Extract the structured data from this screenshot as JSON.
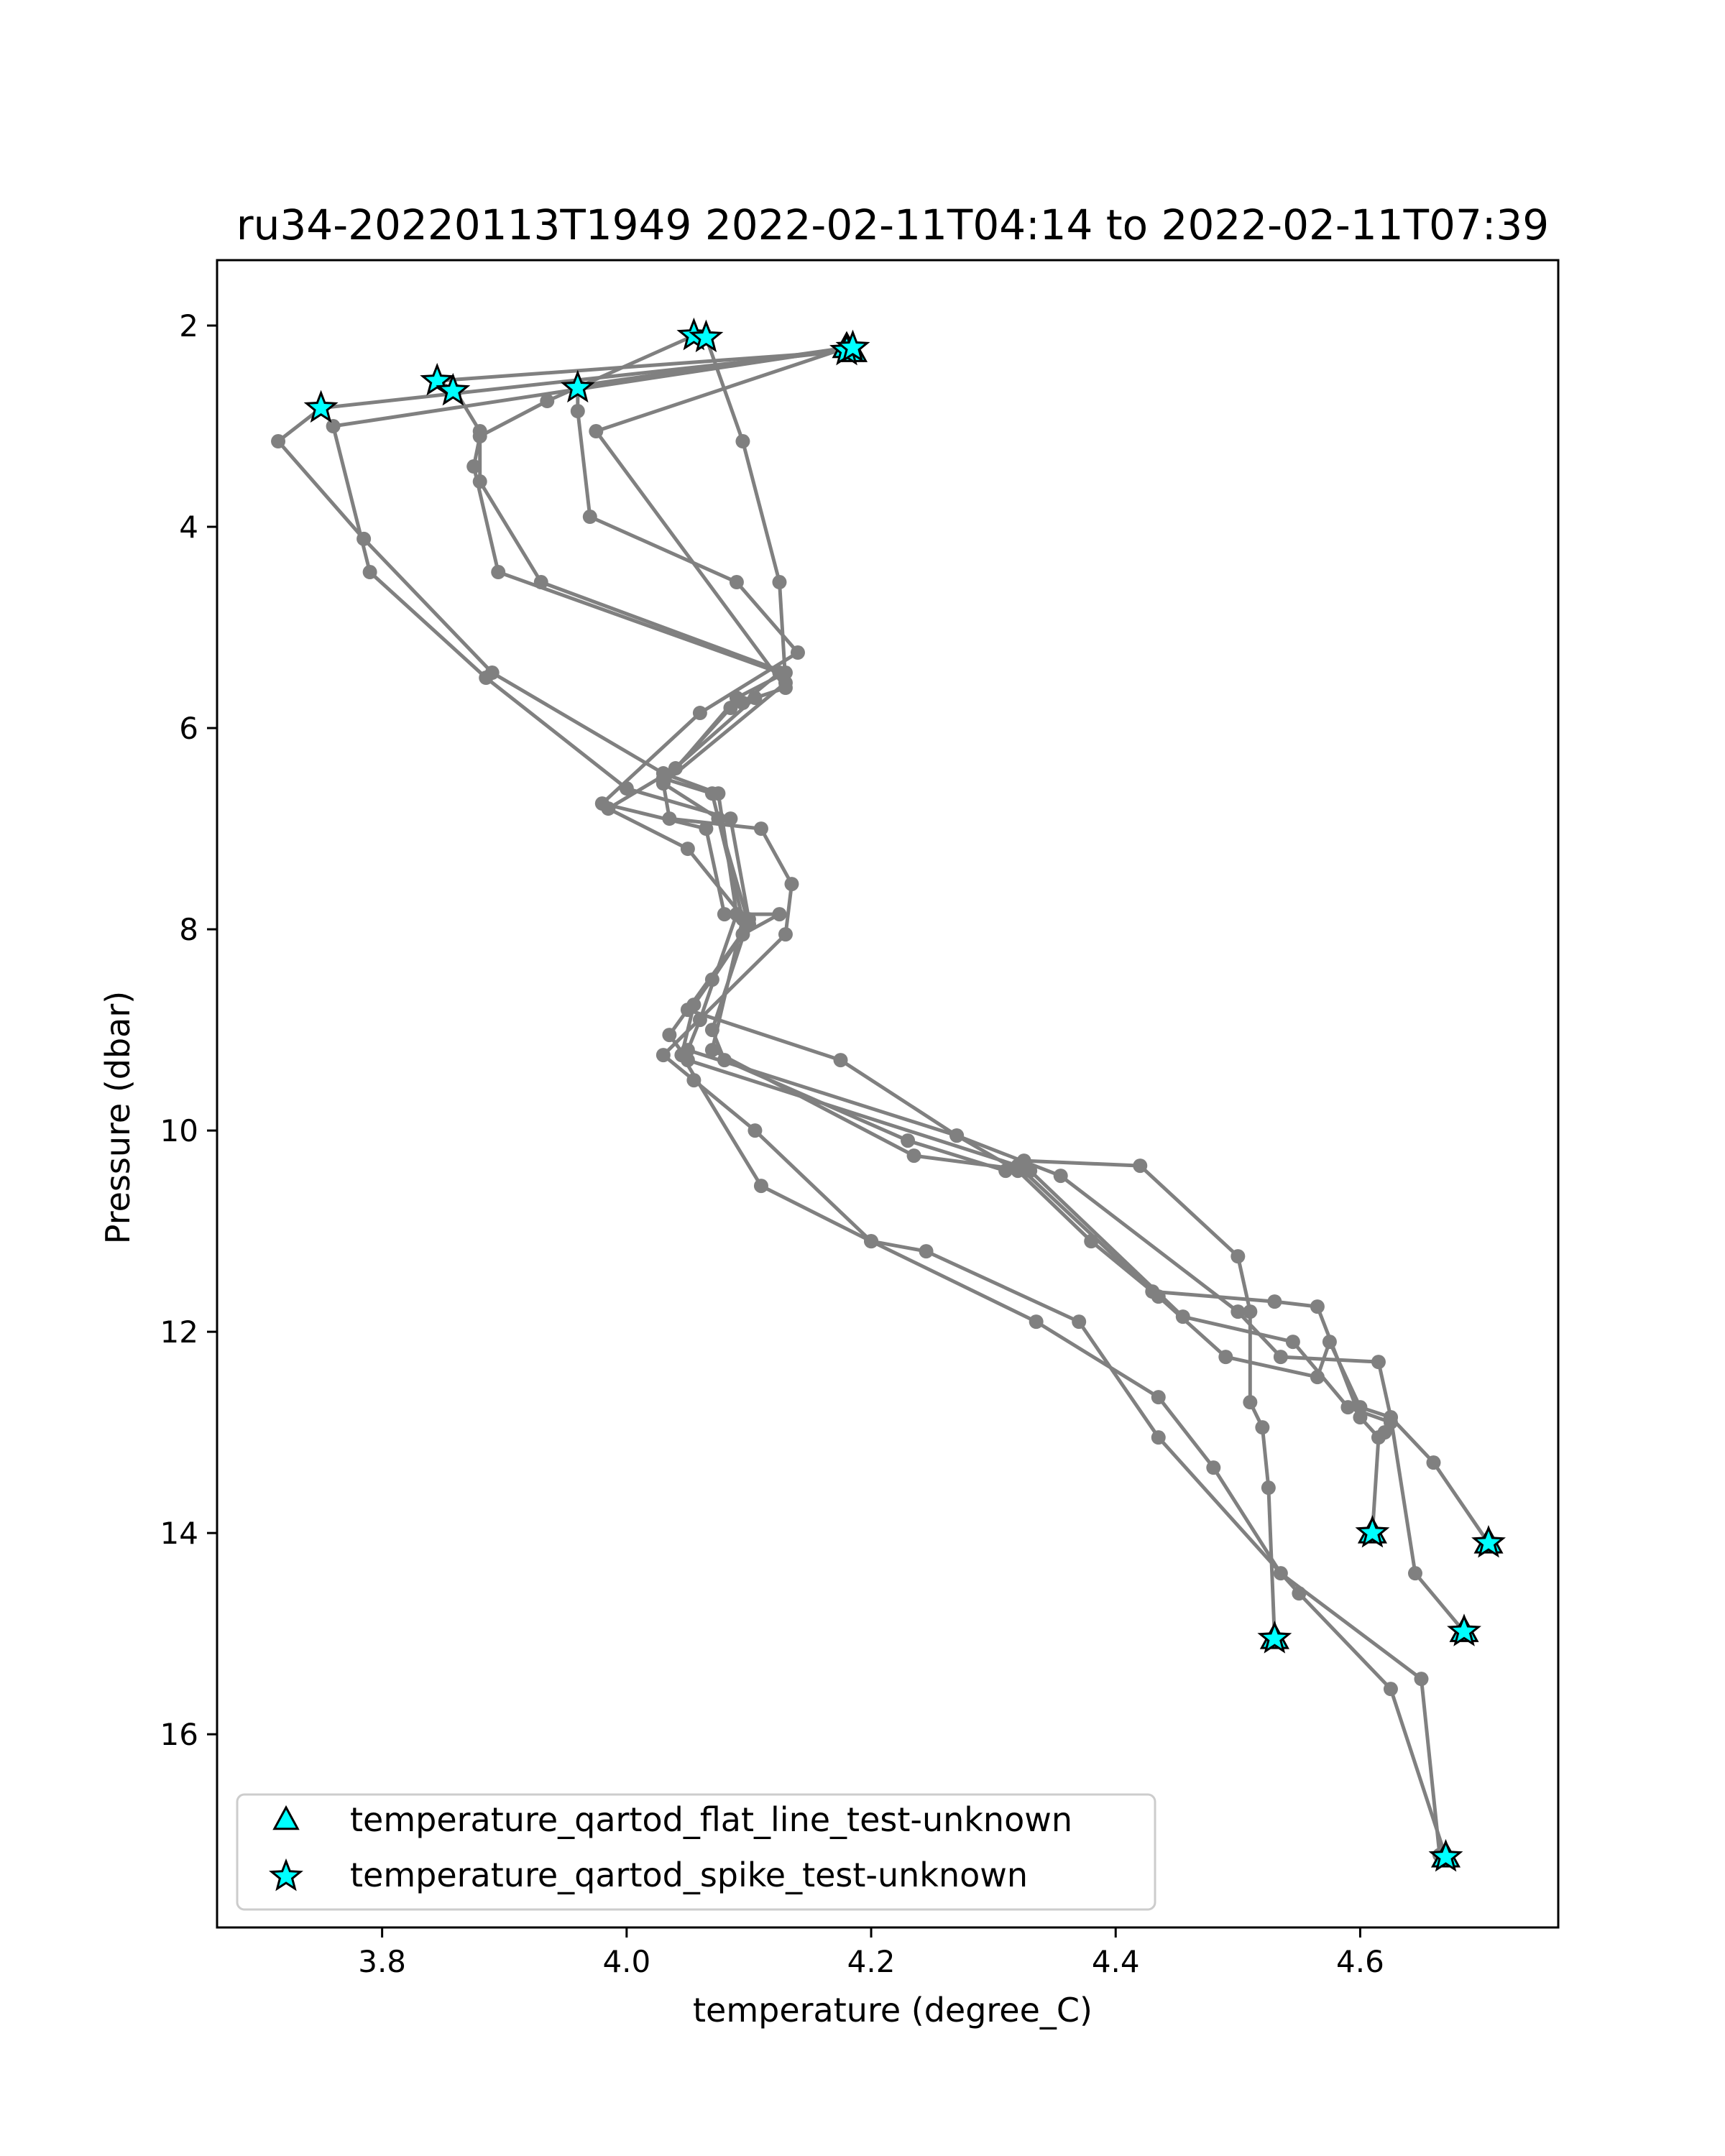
{
  "chart_data": {
    "type": "scatter",
    "title": "ru34-20220113T1949 2022-02-11T04:14 to 2022-02-11T07:39",
    "xlabel": "temperature (degree_C)",
    "ylabel": "Pressure (dbar)",
    "xlim": [
      3.665,
      4.762
    ],
    "ylim": [
      17.92,
      1.35
    ],
    "y_inverted": true,
    "xticks": [
      "3.8",
      "4.0",
      "4.2",
      "4.4",
      "4.6"
    ],
    "xtick_values": [
      3.8,
      4.0,
      4.2,
      4.4,
      4.6
    ],
    "yticks": [
      "2",
      "4",
      "6",
      "8",
      "10",
      "12",
      "14",
      "16"
    ],
    "ytick_values": [
      2,
      4,
      6,
      8,
      10,
      12,
      14,
      16
    ],
    "grid": false,
    "legend_position": "lower-left",
    "colors": {
      "profile_line": "#808080",
      "flag_marker": "#00ffff",
      "marker_edge": "#000000"
    },
    "profiles": [
      {
        "points": [
          [
            4.18,
            2.25
          ],
          [
            3.75,
            2.82
          ],
          [
            3.715,
            3.15
          ],
          [
            3.785,
            4.12
          ],
          [
            3.89,
            5.45
          ],
          [
            4.03,
            6.45
          ],
          [
            4.075,
            6.65
          ],
          [
            4.09,
            7.85
          ],
          [
            4.06,
            8.9
          ],
          [
            4.05,
            9.2
          ],
          [
            4.27,
            10.05
          ],
          [
            4.32,
            10.4
          ],
          [
            4.38,
            11.1
          ],
          [
            4.435,
            11.65
          ],
          [
            4.49,
            12.25
          ],
          [
            4.565,
            12.45
          ],
          [
            4.575,
            12.1
          ],
          [
            4.6,
            12.75
          ],
          [
            4.625,
            12.85
          ],
          [
            4.645,
            14.4
          ],
          [
            4.685,
            14.98
          ]
        ]
      },
      {
        "points": [
          [
            4.185,
            2.22
          ],
          [
            3.76,
            3.0
          ],
          [
            3.79,
            4.45
          ],
          [
            3.885,
            5.5
          ],
          [
            4.0,
            6.6
          ],
          [
            4.085,
            6.9
          ],
          [
            4.1,
            7.9
          ],
          [
            4.07,
            9.0
          ],
          [
            4.08,
            9.3
          ],
          [
            4.23,
            10.1
          ],
          [
            4.31,
            10.4
          ],
          [
            4.325,
            10.3
          ],
          [
            4.42,
            10.35
          ],
          [
            4.5,
            11.25
          ],
          [
            4.51,
            11.8
          ],
          [
            4.51,
            12.7
          ],
          [
            4.52,
            12.95
          ],
          [
            4.525,
            13.55
          ],
          [
            4.53,
            15.05
          ]
        ]
      },
      {
        "points": [
          [
            4.055,
            2.1
          ],
          [
            3.935,
            2.75
          ],
          [
            3.88,
            3.1
          ],
          [
            3.875,
            3.4
          ],
          [
            3.895,
            4.45
          ],
          [
            4.125,
            5.45
          ],
          [
            4.095,
            5.75
          ],
          [
            4.085,
            5.8
          ],
          [
            4.04,
            6.4
          ],
          [
            3.985,
            6.8
          ],
          [
            4.05,
            7.2
          ],
          [
            4.1,
            7.95
          ],
          [
            4.035,
            9.05
          ],
          [
            4.05,
            9.3
          ],
          [
            4.32,
            10.35
          ],
          [
            4.43,
            11.6
          ],
          [
            4.53,
            11.7
          ],
          [
            4.565,
            11.75
          ],
          [
            4.6,
            12.85
          ],
          [
            4.615,
            13.05
          ],
          [
            4.61,
            14.0
          ]
        ]
      },
      {
        "points": [
          [
            4.065,
            2.12
          ],
          [
            4.095,
            3.15
          ],
          [
            4.125,
            4.55
          ],
          [
            4.13,
            5.55
          ],
          [
            4.03,
            6.55
          ],
          [
            4.035,
            6.9
          ],
          [
            4.11,
            7.0
          ],
          [
            4.135,
            7.55
          ],
          [
            4.13,
            8.05
          ],
          [
            4.03,
            9.25
          ],
          [
            4.055,
            9.5
          ],
          [
            4.105,
            10.0
          ],
          [
            4.2,
            11.1
          ],
          [
            4.335,
            11.9
          ],
          [
            4.435,
            12.65
          ],
          [
            4.48,
            13.35
          ],
          [
            4.535,
            14.4
          ],
          [
            4.65,
            15.45
          ],
          [
            4.665,
            17.2
          ]
        ]
      },
      {
        "points": [
          [
            4.18,
            2.22
          ],
          [
            3.96,
            2.6
          ],
          [
            3.96,
            2.85
          ],
          [
            3.97,
            3.9
          ],
          [
            4.09,
            4.55
          ],
          [
            4.14,
            5.25
          ],
          [
            4.06,
            5.85
          ],
          [
            3.98,
            6.75
          ],
          [
            4.065,
            7.0
          ],
          [
            4.08,
            7.85
          ],
          [
            4.125,
            7.85
          ],
          [
            4.095,
            8.05
          ],
          [
            4.055,
            8.75
          ],
          [
            4.045,
            9.25
          ],
          [
            4.11,
            10.55
          ],
          [
            4.2,
            11.1
          ],
          [
            4.245,
            11.2
          ],
          [
            4.37,
            11.9
          ],
          [
            4.435,
            13.05
          ],
          [
            4.55,
            14.6
          ],
          [
            4.625,
            15.55
          ],
          [
            4.67,
            17.22
          ]
        ]
      },
      {
        "points": [
          [
            4.185,
            2.25
          ],
          [
            3.845,
            2.55
          ],
          [
            3.86,
            2.65
          ],
          [
            3.88,
            3.05
          ],
          [
            3.88,
            3.55
          ],
          [
            3.93,
            4.55
          ],
          [
            4.13,
            5.45
          ],
          [
            4.09,
            5.7
          ],
          [
            4.03,
            6.55
          ],
          [
            4.075,
            6.9
          ],
          [
            4.1,
            7.95
          ],
          [
            4.07,
            8.5
          ],
          [
            4.05,
            8.8
          ],
          [
            4.175,
            9.3
          ],
          [
            4.27,
            10.05
          ],
          [
            4.355,
            10.45
          ],
          [
            4.5,
            11.8
          ],
          [
            4.535,
            12.25
          ],
          [
            4.615,
            12.3
          ],
          [
            4.625,
            12.85
          ],
          [
            4.66,
            13.3
          ],
          [
            4.705,
            14.1
          ]
        ]
      },
      {
        "points": [
          [
            4.18,
            2.22
          ],
          [
            3.975,
            3.05
          ],
          [
            4.13,
            5.6
          ],
          [
            4.105,
            5.7
          ],
          [
            4.03,
            6.5
          ],
          [
            4.07,
            6.65
          ],
          [
            4.095,
            7.9
          ],
          [
            4.07,
            9.2
          ],
          [
            4.235,
            10.25
          ],
          [
            4.33,
            10.4
          ],
          [
            4.455,
            11.85
          ],
          [
            4.545,
            12.1
          ],
          [
            4.59,
            12.75
          ],
          [
            4.625,
            12.9
          ],
          [
            4.62,
            13.0
          ]
        ]
      }
    ],
    "series": [
      {
        "name": "temperature_qartod_flat_line_test-unknown",
        "marker": "triangle",
        "points": [
          [
            4.18,
            2.22
          ],
          [
            4.185,
            2.26
          ],
          [
            4.61,
            14.0
          ],
          [
            4.705,
            14.1
          ],
          [
            4.685,
            14.98
          ],
          [
            4.53,
            15.05
          ],
          [
            4.67,
            17.22
          ]
        ]
      },
      {
        "name": "temperature_qartod_spike_test-unknown",
        "marker": "star",
        "points": [
          [
            4.055,
            2.1
          ],
          [
            4.065,
            2.12
          ],
          [
            4.18,
            2.25
          ],
          [
            4.185,
            2.22
          ],
          [
            3.845,
            2.55
          ],
          [
            3.858,
            2.65
          ],
          [
            3.96,
            2.62
          ],
          [
            3.75,
            2.82
          ],
          [
            4.61,
            14.0
          ],
          [
            4.705,
            14.1
          ],
          [
            4.685,
            14.98
          ],
          [
            4.53,
            15.05
          ],
          [
            4.67,
            17.22
          ]
        ]
      }
    ]
  }
}
